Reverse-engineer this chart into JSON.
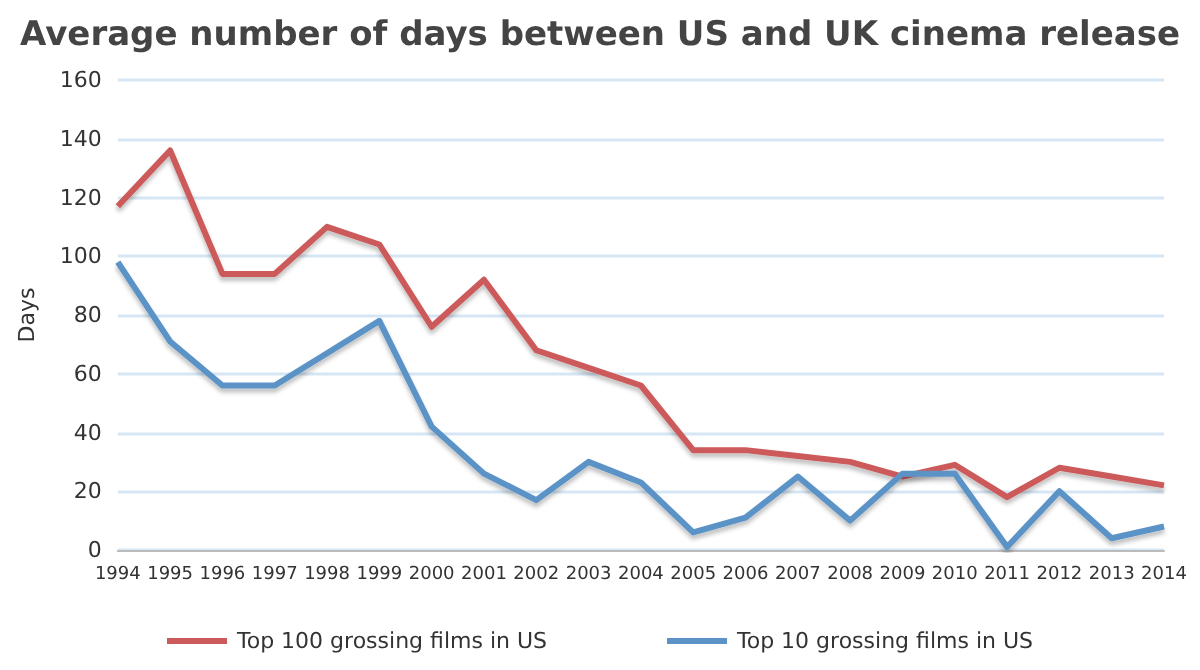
{
  "chart_data": {
    "type": "line",
    "title": "Average number of days between US and UK cinema release",
    "ylabel": "Days",
    "categories": [
      "1994",
      "1995",
      "1996",
      "1997",
      "1998",
      "1999",
      "2000",
      "2001",
      "2002",
      "2003",
      "2004",
      "2005",
      "2006",
      "2007",
      "2008",
      "2009",
      "2010",
      "2011",
      "2012",
      "2013",
      "2014"
    ],
    "series": [
      {
        "name": "Top 100 grossing films in US",
        "color": "#cc5a5a",
        "values": [
          117,
          136,
          94,
          94,
          110,
          104,
          76,
          92,
          68,
          62,
          56,
          34,
          34,
          32,
          30,
          25,
          29,
          18,
          28,
          25,
          22
        ]
      },
      {
        "name": "Top 10 grossing films in US",
        "color": "#5b93c7",
        "values": [
          98,
          71,
          56,
          56,
          67,
          78,
          42,
          26,
          17,
          30,
          23,
          6,
          11,
          25,
          10,
          26,
          26,
          1,
          20,
          4,
          8
        ]
      }
    ],
    "ylim": [
      0,
      160
    ],
    "yticks": [
      0,
      20,
      40,
      60,
      80,
      100,
      120,
      140,
      160
    ],
    "grid": "y",
    "legend": "bottom",
    "marker": "none",
    "line_style": "solid"
  }
}
